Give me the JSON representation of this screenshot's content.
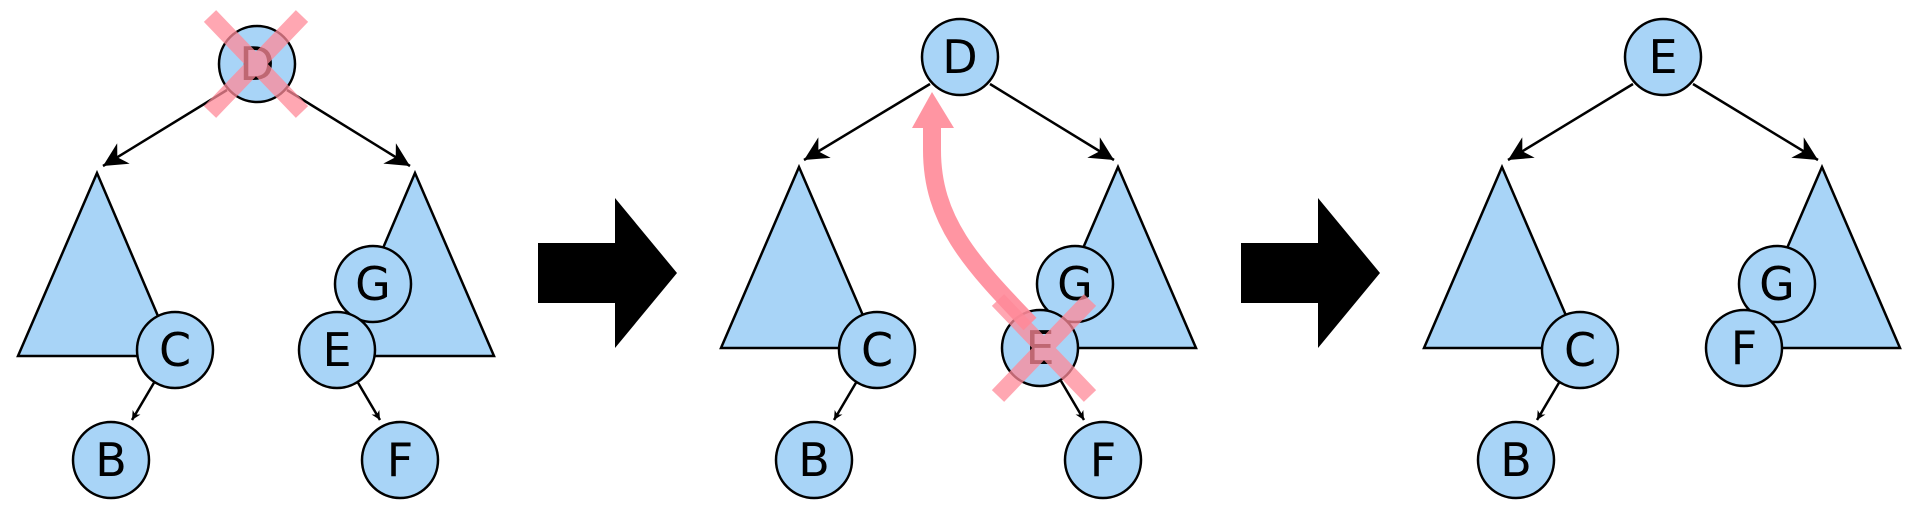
{
  "colors": {
    "node_fill": "#a8d4f7",
    "subtree_fill": "#a8d4f7",
    "stroke": "#000000",
    "cross": "#ff8a99",
    "move_arrow": "#ff8a99",
    "step_arrow": "#000000"
  },
  "icons": {
    "delete_mark": "cross-icon",
    "step": "right-arrow-icon"
  },
  "panels": [
    {
      "id": "before",
      "nodes": {
        "root": "D",
        "c": "C",
        "b": "B",
        "g": "G",
        "e": "E",
        "f": "F"
      },
      "deleted_node": "D"
    },
    {
      "id": "replace",
      "nodes": {
        "root": "D",
        "c": "C",
        "b": "B",
        "g": "G",
        "e": "E",
        "f": "F"
      },
      "deleted_node": "E",
      "moved_value": {
        "from": "E",
        "to": "D"
      }
    },
    {
      "id": "after",
      "nodes": {
        "root": "E",
        "c": "C",
        "b": "B",
        "g": "G",
        "f": "F"
      }
    }
  ]
}
